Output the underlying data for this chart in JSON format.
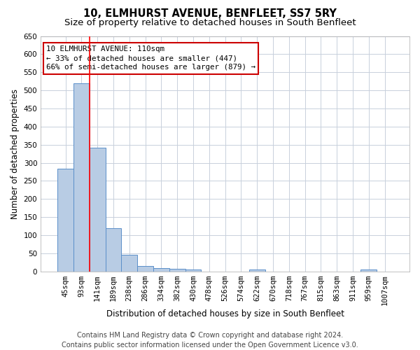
{
  "title": "10, ELMHURST AVENUE, BENFLEET, SS7 5RY",
  "subtitle": "Size of property relative to detached houses in South Benfleet",
  "xlabel": "Distribution of detached houses by size in South Benfleet",
  "ylabel": "Number of detached properties",
  "categories": [
    "45sqm",
    "93sqm",
    "141sqm",
    "189sqm",
    "238sqm",
    "286sqm",
    "334sqm",
    "382sqm",
    "430sqm",
    "478sqm",
    "526sqm",
    "574sqm",
    "622sqm",
    "670sqm",
    "718sqm",
    "767sqm",
    "815sqm",
    "863sqm",
    "911sqm",
    "959sqm",
    "1007sqm"
  ],
  "values": [
    283,
    519,
    341,
    120,
    47,
    16,
    10,
    8,
    5,
    0,
    0,
    0,
    5,
    0,
    0,
    0,
    0,
    0,
    0,
    5,
    0
  ],
  "bar_color": "#b8cce4",
  "bar_edge_color": "#5b8fc9",
  "property_line_x": 1.5,
  "annotation_box": {
    "text_line1": "10 ELMHURST AVENUE: 110sqm",
    "text_line2": "← 33% of detached houses are smaller (447)",
    "text_line3": "66% of semi-detached houses are larger (879) →"
  },
  "annotation_box_color": "#cc0000",
  "ylim": [
    0,
    650
  ],
  "yticks": [
    0,
    50,
    100,
    150,
    200,
    250,
    300,
    350,
    400,
    450,
    500,
    550,
    600,
    650
  ],
  "footer_line1": "Contains HM Land Registry data © Crown copyright and database right 2024.",
  "footer_line2": "Contains public sector information licensed under the Open Government Licence v3.0.",
  "background_color": "#ffffff",
  "grid_color": "#c8d0dc",
  "title_fontsize": 10.5,
  "subtitle_fontsize": 9.5,
  "axis_label_fontsize": 8.5,
  "tick_fontsize": 7.5,
  "footer_fontsize": 7
}
